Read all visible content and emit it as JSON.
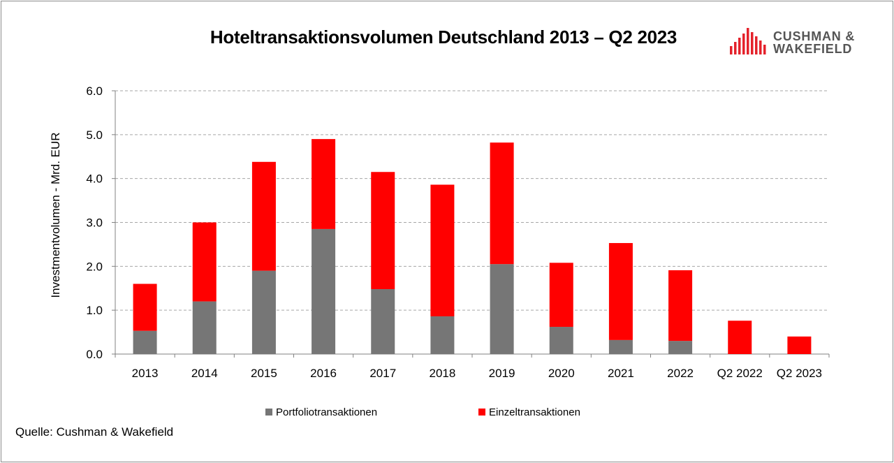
{
  "chart_data": {
    "type": "bar",
    "stacked": true,
    "title": "Hoteltransaktionsvolumen Deutschland 2013 – Q2 2023",
    "ylabel": "Investmentvolumen - Mrd. EUR",
    "xlabel": "",
    "ylim": [
      0,
      6
    ],
    "yticks": [
      "0.0",
      "1.0",
      "2.0",
      "3.0",
      "4.0",
      "5.0",
      "6.0"
    ],
    "grid": true,
    "legend_position": "bottom",
    "categories": [
      "2013",
      "2014",
      "2015",
      "2016",
      "2017",
      "2018",
      "2019",
      "2020",
      "2021",
      "2022",
      "Q2 2022",
      "Q2 2023"
    ],
    "series": [
      {
        "name": "Portfoliotransaktionen",
        "color": "#767676",
        "values": [
          0.53,
          1.2,
          1.9,
          2.85,
          1.48,
          0.86,
          2.05,
          0.62,
          0.32,
          0.3,
          0,
          0
        ]
      },
      {
        "name": "Einzeltransaktionen",
        "color": "#ff0000",
        "values": [
          1.07,
          1.8,
          2.48,
          2.05,
          2.67,
          3.0,
          2.77,
          1.46,
          2.21,
          1.61,
          0.76,
          0.4
        ]
      }
    ]
  },
  "source": "Quelle: Cushman & Wakefield",
  "logo": {
    "line1": "CUSHMAN &",
    "line2": "WAKEFIELD",
    "color": "#e4222b"
  }
}
